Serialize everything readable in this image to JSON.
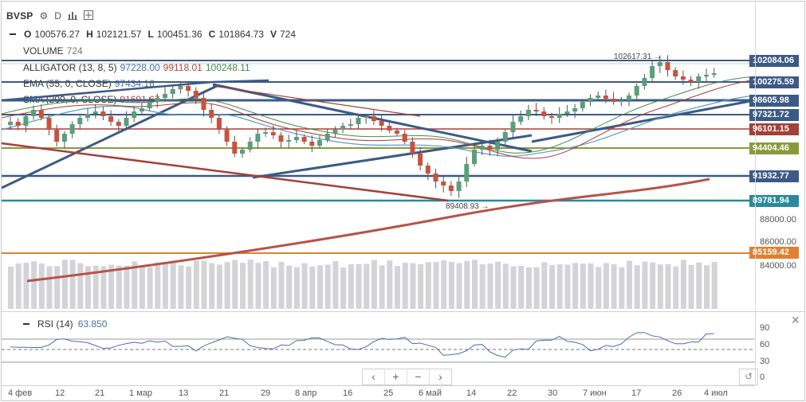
{
  "symbol": "BVSP",
  "toolbar": {
    "interval": "D",
    "settings_icon": "gear-icon",
    "compare_icon": "chart-icon",
    "add_icon": "add-indicator-icon"
  },
  "ohlc": {
    "o_label": "O",
    "o_value": "100576.27",
    "h_label": "H",
    "h_value": "102121.57",
    "l_label": "L",
    "l_value": "100451.36",
    "c_label": "C",
    "c_value": "101864.73",
    "v_label": "V",
    "v_value": "724"
  },
  "indicators": {
    "volume": {
      "name": "VOLUME",
      "value": "724"
    },
    "alligator": {
      "name": "ALLIGATOR (13, 8, 5)",
      "v1": "97228.00",
      "v2": "99118.01",
      "v3": "100248.11"
    },
    "ema": {
      "name": "EMA (55, 0, CLOSE)",
      "value": "97434.16"
    },
    "sma": {
      "name": "SMA (200, 0, CLOSE)",
      "value": "91691.67"
    }
  },
  "price_labels": {
    "p1": {
      "text": "102084.06",
      "color": "#3b5a85"
    },
    "p2": {
      "text": "100275.59",
      "color": "#3b5a85"
    },
    "p3": {
      "text": "98605.98",
      "color": "#3b5a85"
    },
    "p4": {
      "text": "97321.72",
      "color": "#3b5a85"
    },
    "p5": {
      "text": "96101.15",
      "color": "#a3403a"
    },
    "p6": {
      "text": "94404.46",
      "color": "#8a9a3a"
    },
    "p7": {
      "text": "91932.77",
      "color": "#3b5a85"
    },
    "p8": {
      "text": "89781.94",
      "color": "#2a8a9a"
    },
    "p9": {
      "text": "85159.42",
      "color": "#e08030"
    }
  },
  "price_axis_plain": [
    "88000.00",
    "86000.00",
    "84000.00"
  ],
  "chart_annotations": {
    "high_marker": "102617.31 →",
    "low_marker": "89408.93 →"
  },
  "rsi": {
    "name": "RSI (14)",
    "value": "63.850",
    "levels": [
      "90",
      "60",
      "30",
      "0"
    ]
  },
  "navigation": {
    "left": "‹",
    "zoom_in": "+",
    "zoom_out": "−",
    "right": "›",
    "reset": "↺",
    "close": "✕"
  },
  "x_axis": [
    "4 фев",
    "12",
    "21",
    "1 мар",
    "13",
    "21",
    "29",
    "8 апр",
    "16",
    "25",
    "6 май",
    "14",
    "22",
    "30",
    "7 июн",
    "17",
    "26",
    "4 июл"
  ],
  "colors": {
    "bull": "#5a9e7a",
    "bear": "#c8523f",
    "ema": "#3b5a85",
    "sma": "#b5534a",
    "volume": "#d4d4d8"
  }
}
